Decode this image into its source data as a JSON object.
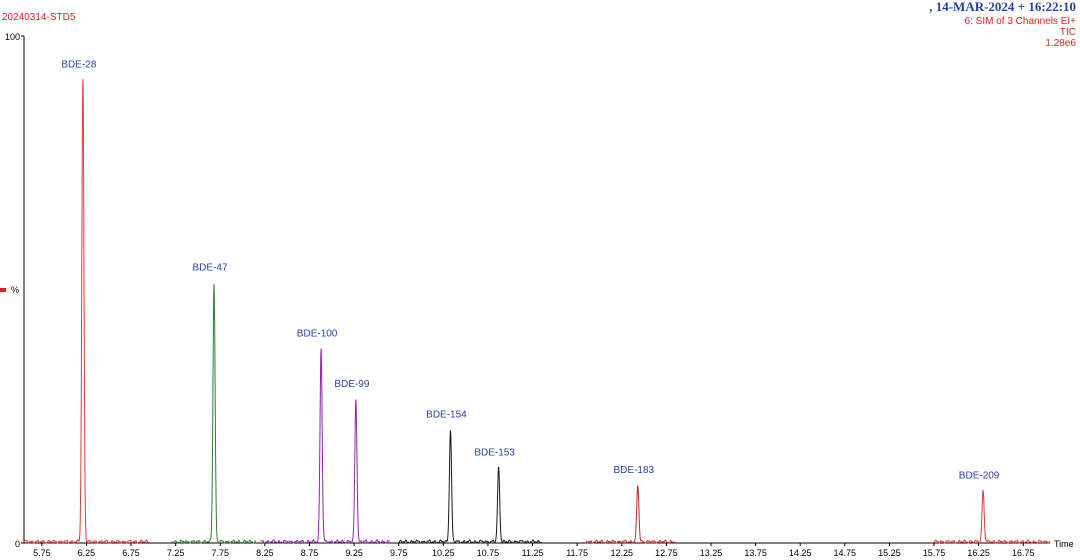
{
  "header": {
    "sample_name": "20240314-STD5",
    "datetime": ", 14-MAR-2024 + 16:22:10",
    "function_line": "6: SIM of 3 Channels EI+",
    "trace": "TIC",
    "scale": "1.28e6"
  },
  "chart_data": {
    "type": "line",
    "xlabel": "Time",
    "ylabel": "%",
    "xlim": [
      5.55,
      17.05
    ],
    "ylim": [
      0,
      100
    ],
    "y_ticks": [
      "100",
      "0"
    ],
    "x_ticks": [
      5.75,
      6.25,
      6.75,
      7.25,
      7.75,
      8.25,
      8.75,
      9.25,
      9.75,
      10.25,
      10.75,
      11.25,
      11.75,
      12.25,
      12.75,
      13.25,
      13.75,
      14.25,
      14.75,
      15.25,
      15.75,
      16.25,
      16.75
    ],
    "x_tick_labels": [
      "5.75",
      "6.25",
      "6.75",
      "7.25",
      "7.75",
      "8.25",
      "8.75",
      "9.25",
      "9.75",
      "10.25",
      "10.75",
      "11.25",
      "11.75",
      "12.25",
      "12.75",
      "13.25",
      "13.75",
      "14.25",
      "14.75",
      "15.25",
      "15.75",
      "16.25",
      "16.75"
    ],
    "segments": [
      {
        "x_start": 5.55,
        "x_end": 6.95,
        "color": "#e53935"
      },
      {
        "x_start": 7.2,
        "x_end": 8.15,
        "color": "#2e7d32"
      },
      {
        "x_start": 8.2,
        "x_end": 9.65,
        "color": "#8e24aa"
      },
      {
        "x_start": 9.75,
        "x_end": 11.35,
        "color": "#1a1a1a"
      },
      {
        "x_start": 11.85,
        "x_end": 12.85,
        "color": "#c62828"
      },
      {
        "x_start": 15.75,
        "x_end": 17.05,
        "color": "#e53935"
      }
    ],
    "peaks": [
      {
        "label": "BDE-28",
        "rt": 6.21,
        "height": 91,
        "color": "#e53935"
      },
      {
        "label": "BDE-47",
        "rt": 7.68,
        "height": 51,
        "color": "#2e7d32"
      },
      {
        "label": "BDE-100",
        "rt": 8.88,
        "height": 38,
        "color": "#8e24aa"
      },
      {
        "label": "BDE-99",
        "rt": 9.27,
        "height": 28,
        "color": "#8e24aa"
      },
      {
        "label": "BDE-154",
        "rt": 10.33,
        "height": 22,
        "color": "#1a1a1a"
      },
      {
        "label": "BDE-153",
        "rt": 10.87,
        "height": 14.5,
        "color": "#1a1a1a"
      },
      {
        "label": "BDE-183",
        "rt": 12.43,
        "height": 11,
        "color": "#c62828"
      },
      {
        "label": "BDE-209",
        "rt": 16.3,
        "height": 10,
        "color": "#e53935"
      }
    ],
    "label_color": "#2a3fa8",
    "axis_color": "#000000",
    "marker_color": "#e02020"
  }
}
